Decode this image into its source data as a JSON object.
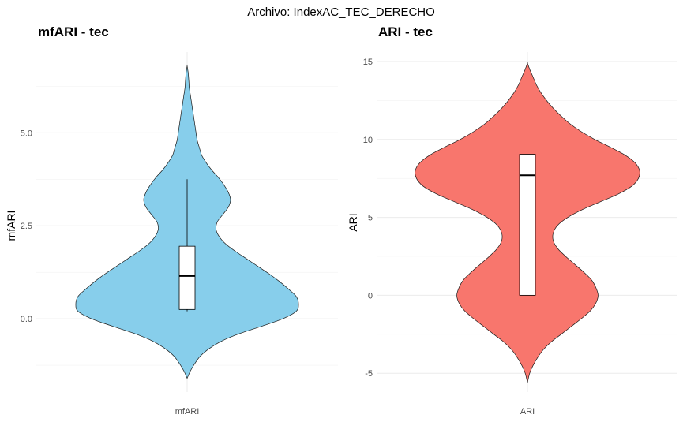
{
  "figure": {
    "suptitle": "Archivo: IndexAC_TEC_DERECHO"
  },
  "chart_data": [
    {
      "type": "violin",
      "title": "mfARI - tec",
      "xlabel": "",
      "ylabel": "mfARI",
      "categories": [
        "mfARI"
      ],
      "ylim": [
        -1.8,
        7.0
      ],
      "yticks": [
        0.0,
        2.5,
        5.0
      ],
      "ytick_labels": [
        "0.0",
        "2.5",
        "5.0"
      ],
      "grid": true,
      "fill_color": "#87CEEB",
      "density_profile": {
        "y": [
          -1.6,
          -1.4,
          -1.2,
          -1.0,
          -0.8,
          -0.6,
          -0.4,
          -0.2,
          0.0,
          0.2,
          0.4,
          0.6,
          0.8,
          1.0,
          1.2,
          1.4,
          1.6,
          1.8,
          2.0,
          2.2,
          2.4,
          2.6,
          2.8,
          3.0,
          3.2,
          3.4,
          3.6,
          3.8,
          4.0,
          4.2,
          4.4,
          4.6,
          4.8,
          5.0,
          5.2,
          5.4,
          5.6,
          5.8,
          6.0,
          6.2,
          6.4,
          6.6,
          6.8
        ],
        "halfwidth": [
          0.0,
          0.03,
          0.07,
          0.12,
          0.2,
          0.31,
          0.47,
          0.67,
          0.86,
          0.98,
          1.0,
          0.98,
          0.91,
          0.83,
          0.74,
          0.64,
          0.54,
          0.44,
          0.35,
          0.29,
          0.26,
          0.27,
          0.32,
          0.37,
          0.39,
          0.37,
          0.33,
          0.28,
          0.22,
          0.17,
          0.13,
          0.11,
          0.09,
          0.08,
          0.07,
          0.06,
          0.05,
          0.04,
          0.03,
          0.02,
          0.015,
          0.01,
          0.0
        ]
      },
      "boxplot": {
        "whisker_low": 0.2,
        "q1": 0.25,
        "median": 1.15,
        "q3": 1.95,
        "whisker_high": 3.75
      }
    },
    {
      "type": "violin",
      "title": "ARI - tec",
      "xlabel": "",
      "ylabel": "ARI",
      "categories": [
        "ARI"
      ],
      "ylim": [
        -5.8,
        15.2
      ],
      "yticks": [
        -5,
        0,
        5,
        10,
        15
      ],
      "ytick_labels": [
        "-5",
        "0",
        "5",
        "10",
        "15"
      ],
      "grid": true,
      "fill_color": "#F8766D",
      "density_profile": {
        "y": [
          -5.6,
          -5.0,
          -4.5,
          -4.0,
          -3.5,
          -3.0,
          -2.5,
          -2.0,
          -1.5,
          -1.0,
          -0.5,
          0.0,
          0.5,
          1.0,
          1.5,
          2.0,
          2.5,
          3.0,
          3.5,
          4.0,
          4.5,
          5.0,
          5.5,
          6.0,
          6.5,
          7.0,
          7.5,
          8.0,
          8.5,
          9.0,
          9.5,
          10.0,
          10.5,
          11.0,
          11.5,
          12.0,
          12.5,
          13.0,
          13.5,
          14.0,
          14.5,
          14.9
        ],
        "halfwidth": [
          0.0,
          0.02,
          0.05,
          0.09,
          0.14,
          0.21,
          0.3,
          0.39,
          0.48,
          0.56,
          0.61,
          0.63,
          0.61,
          0.57,
          0.5,
          0.42,
          0.34,
          0.27,
          0.23,
          0.23,
          0.27,
          0.36,
          0.49,
          0.65,
          0.81,
          0.93,
          0.99,
          1.0,
          0.96,
          0.87,
          0.74,
          0.6,
          0.48,
          0.38,
          0.3,
          0.23,
          0.17,
          0.12,
          0.08,
          0.05,
          0.02,
          0.0
        ]
      },
      "boxplot": {
        "whisker_low": 0.0,
        "q1": 0.0,
        "median": 7.7,
        "q3": 9.05,
        "whisker_high": 9.05
      }
    }
  ]
}
